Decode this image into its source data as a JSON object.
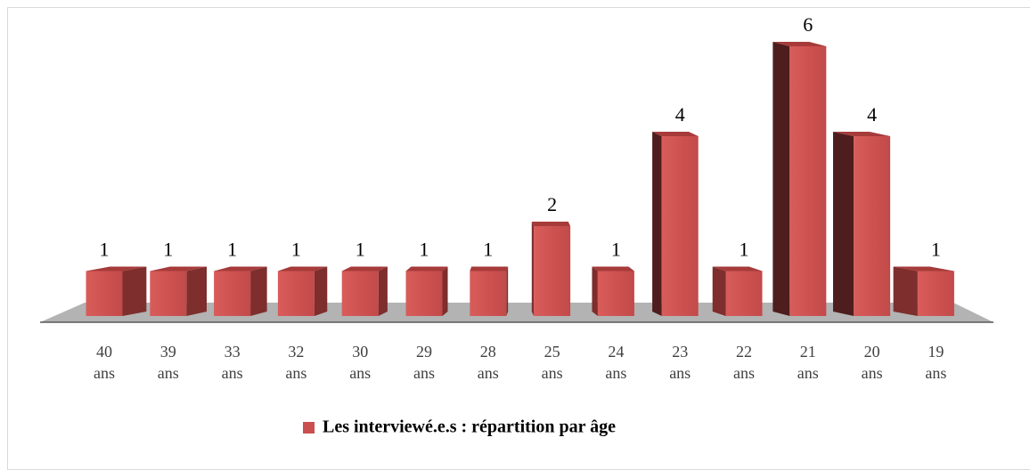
{
  "chart_data": {
    "type": "bar3d",
    "categories": [
      "40 ans",
      "39 ans",
      "33 ans",
      "32 ans",
      "30 ans",
      "29 ans",
      "28 ans",
      "25 ans",
      "24 ans",
      "23 ans",
      "22 ans",
      "21 ans",
      "20 ans",
      "19 ans"
    ],
    "series": [
      {
        "name": "Les interviewé.e.s : répartition par âge",
        "color": "#c9504f",
        "values": [
          1,
          1,
          1,
          1,
          1,
          1,
          1,
          2,
          1,
          4,
          1,
          6,
          4,
          1
        ]
      }
    ],
    "legend": "bottom"
  }
}
